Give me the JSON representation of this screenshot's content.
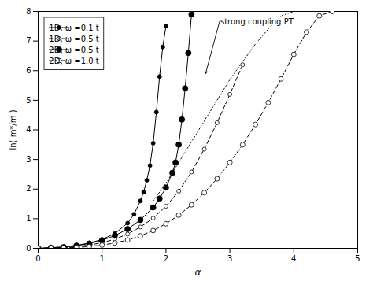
{
  "chart_data": {
    "type": "line",
    "xlabel": "α",
    "ylabel": "ln( m*/m )",
    "xlim": [
      0,
      5
    ],
    "ylim": [
      0,
      8
    ],
    "xticks": [
      0,
      1,
      2,
      3,
      4,
      5
    ],
    "yticks": [
      0,
      1,
      2,
      3,
      4,
      5,
      6,
      7,
      8
    ],
    "grid": false,
    "legend": "upper left",
    "series": [
      {
        "name": "1D, ω =0.1 t",
        "color": "#000000",
        "marker": "circle",
        "line_style": "solid",
        "x": [
          0,
          0.2,
          0.4,
          0.6,
          0.8,
          1.0,
          1.2,
          1.4,
          1.5,
          1.6,
          1.65,
          1.7,
          1.75,
          1.8,
          1.85,
          1.9,
          1.95,
          2.0
        ],
        "values": [
          0,
          0.02,
          0.05,
          0.1,
          0.18,
          0.3,
          0.5,
          0.85,
          1.15,
          1.6,
          1.9,
          2.3,
          2.8,
          3.55,
          4.6,
          5.8,
          6.8,
          7.5
        ]
      },
      {
        "name": "1D, ω =0.5 t",
        "color": "#000000",
        "marker": "open_circle",
        "line_style": "dashed",
        "x": [
          0,
          0.2,
          0.4,
          0.6,
          0.8,
          1.0,
          1.2,
          1.4,
          1.6,
          1.8,
          2.0,
          2.2,
          2.4,
          2.6,
          2.8,
          3.0,
          3.2
        ],
        "values": [
          0,
          0.01,
          0.03,
          0.06,
          0.11,
          0.19,
          0.31,
          0.48,
          0.72,
          1.02,
          1.42,
          1.93,
          2.58,
          3.35,
          4.24,
          5.2,
          6.2
        ]
      },
      {
        "name": "2D, ω =0.5 t",
        "color": "#000000",
        "marker": "circle",
        "line_style": "solid",
        "x": [
          0,
          0.2,
          0.4,
          0.6,
          0.8,
          1.0,
          1.2,
          1.4,
          1.6,
          1.8,
          1.9,
          2.0,
          2.1,
          2.15,
          2.2,
          2.25,
          2.3,
          2.35,
          2.4
        ],
        "values": [
          0,
          0.02,
          0.04,
          0.09,
          0.16,
          0.27,
          0.43,
          0.65,
          0.96,
          1.38,
          1.68,
          2.05,
          2.55,
          2.9,
          3.5,
          4.35,
          5.4,
          6.6,
          7.9
        ]
      },
      {
        "name": "2D, ω =1.0 t",
        "color": "#000000",
        "marker": "open_circle",
        "line_style": "dashed",
        "x": [
          0,
          0.2,
          0.4,
          0.6,
          0.8,
          1.0,
          1.2,
          1.4,
          1.6,
          1.8,
          2.0,
          2.2,
          2.4,
          2.6,
          2.8,
          3.0,
          3.2,
          3.4,
          3.6,
          3.8,
          4.0,
          4.2,
          4.4,
          4.6
        ],
        "values": [
          0,
          0.005,
          0.015,
          0.03,
          0.06,
          0.11,
          0.18,
          0.28,
          0.42,
          0.6,
          0.83,
          1.12,
          1.47,
          1.88,
          2.35,
          2.9,
          3.5,
          4.18,
          4.92,
          5.72,
          6.55,
          7.3,
          7.85,
          8.0
        ]
      },
      {
        "color": "#000000",
        "line_style": "dotted",
        "x": [
          1.8,
          2.0,
          2.2,
          2.4,
          2.6,
          2.8,
          3.0,
          3.2,
          3.4,
          3.6,
          3.8,
          4.0,
          4.2
        ],
        "values": [
          1.6,
          2.2,
          2.9,
          3.6,
          4.3,
          5.0,
          5.7,
          6.3,
          6.9,
          7.4,
          7.85,
          8.0,
          8.0
        ]
      }
    ],
    "annotations": [
      {
        "text": "strong coupling PT",
        "x": 2.85,
        "y": 7.75,
        "arrow_x": 2.62,
        "arrow_y": 5.9
      }
    ]
  }
}
